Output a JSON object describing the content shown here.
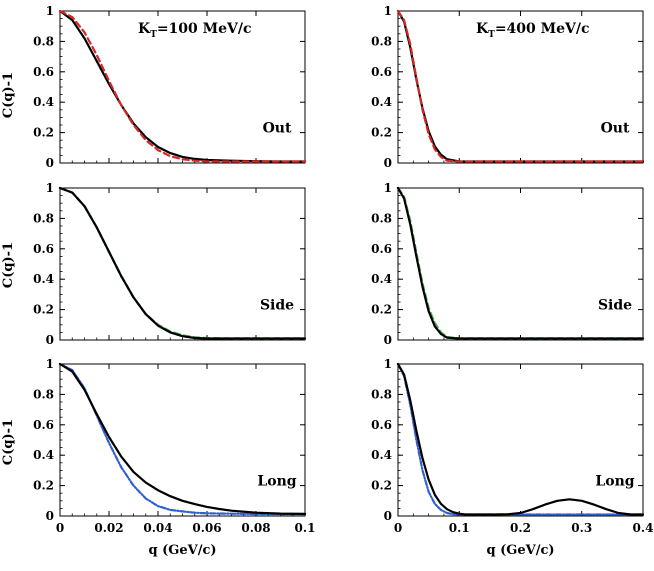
{
  "chart_data": [
    {
      "id": "p00",
      "type": "line",
      "title_main": "K",
      "title_sub": "T",
      "title_rest": "=100 MeV/c",
      "panel_label": "Out",
      "ylabel": "C(q)-1",
      "xlabel": "",
      "xlim": [
        0,
        0.1
      ],
      "ylim": [
        0,
        1
      ],
      "xticks": [
        0,
        0.02,
        0.04,
        0.06,
        0.08,
        0.1
      ],
      "xtick_labels": [
        "",
        "",
        "",
        "",
        "",
        ""
      ],
      "yticks": [
        0,
        0.2,
        0.4,
        0.6,
        0.8,
        1
      ],
      "ytick_labels": [
        "0",
        "0.2",
        "0.4",
        "0.6",
        "0.8",
        "1"
      ],
      "series": [
        {
          "name": "model",
          "color": "#000000",
          "dash": "",
          "width": 2.2,
          "x": [
            0,
            0.005,
            0.01,
            0.015,
            0.02,
            0.025,
            0.03,
            0.035,
            0.04,
            0.045,
            0.05,
            0.055,
            0.06,
            0.07,
            0.08,
            0.09,
            0.1
          ],
          "y": [
            1.0,
            0.94,
            0.82,
            0.67,
            0.52,
            0.38,
            0.26,
            0.17,
            0.105,
            0.065,
            0.04,
            0.027,
            0.02,
            0.015,
            0.012,
            0.01,
            0.01
          ]
        },
        {
          "name": "fit",
          "color": "#d62728",
          "dash": "6,4",
          "width": 2.2,
          "x": [
            0,
            0.005,
            0.01,
            0.015,
            0.02,
            0.025,
            0.03,
            0.035,
            0.04,
            0.045,
            0.05,
            0.055,
            0.06,
            0.07,
            0.08,
            0.09,
            0.1
          ],
          "y": [
            1.0,
            0.96,
            0.86,
            0.71,
            0.54,
            0.38,
            0.25,
            0.15,
            0.085,
            0.045,
            0.025,
            0.015,
            0.01,
            0.01,
            0.01,
            0.01,
            0.01
          ]
        }
      ]
    },
    {
      "id": "p01",
      "type": "line",
      "title_main": "K",
      "title_sub": "T",
      "title_rest": "=400 MeV/c",
      "panel_label": "Out",
      "ylabel": "",
      "xlabel": "",
      "xlim": [
        0,
        0.4
      ],
      "ylim": [
        0,
        1
      ],
      "xticks": [
        0,
        0.1,
        0.2,
        0.3,
        0.4
      ],
      "xtick_labels": [
        "",
        "",
        "",
        "",
        ""
      ],
      "yticks": [
        0,
        0.2,
        0.4,
        0.6,
        0.8,
        1
      ],
      "ytick_labels": [
        "0",
        "0.2",
        "0.4",
        "0.6",
        "0.8",
        "1"
      ],
      "series": [
        {
          "name": "model",
          "color": "#000000",
          "dash": "",
          "width": 2.2,
          "x": [
            0,
            0.01,
            0.02,
            0.03,
            0.04,
            0.05,
            0.06,
            0.07,
            0.08,
            0.1,
            0.12,
            0.15,
            0.2,
            0.3,
            0.4
          ],
          "y": [
            1.0,
            0.93,
            0.76,
            0.55,
            0.36,
            0.21,
            0.11,
            0.055,
            0.025,
            0.01,
            0.01,
            0.01,
            0.01,
            0.01,
            0.01
          ]
        },
        {
          "name": "fit",
          "color": "#d62728",
          "dash": "6,4",
          "width": 2.2,
          "x": [
            0,
            0.01,
            0.02,
            0.03,
            0.04,
            0.05,
            0.06,
            0.07,
            0.08,
            0.1,
            0.12,
            0.15,
            0.2,
            0.3,
            0.4
          ],
          "y": [
            1.0,
            0.94,
            0.78,
            0.56,
            0.35,
            0.19,
            0.09,
            0.04,
            0.015,
            0.01,
            0.01,
            0.01,
            0.01,
            0.01,
            0.01
          ]
        }
      ]
    },
    {
      "id": "p10",
      "type": "line",
      "panel_label": "Side",
      "ylabel": "C(q)-1",
      "xlabel": "",
      "xlim": [
        0,
        0.1
      ],
      "ylim": [
        0,
        1
      ],
      "xticks": [
        0,
        0.02,
        0.04,
        0.06,
        0.08,
        0.1
      ],
      "xtick_labels": [
        "",
        "",
        "",
        "",
        "",
        ""
      ],
      "yticks": [
        0,
        0.2,
        0.4,
        0.6,
        0.8,
        1
      ],
      "ytick_labels": [
        "0",
        "0.2",
        "0.4",
        "0.6",
        "0.8",
        "1"
      ],
      "series": [
        {
          "name": "fit",
          "color": "#4caf50",
          "dash": "6,4",
          "width": 2.4,
          "x": [
            0,
            0.005,
            0.01,
            0.015,
            0.02,
            0.025,
            0.03,
            0.035,
            0.04,
            0.045,
            0.05,
            0.055,
            0.06,
            0.07,
            0.08,
            0.1
          ],
          "y": [
            1.0,
            0.97,
            0.88,
            0.74,
            0.58,
            0.42,
            0.28,
            0.17,
            0.1,
            0.055,
            0.03,
            0.018,
            0.012,
            0.01,
            0.01,
            0.01
          ]
        },
        {
          "name": "model",
          "color": "#000000",
          "dash": "",
          "width": 2.2,
          "x": [
            0,
            0.005,
            0.01,
            0.015,
            0.02,
            0.025,
            0.03,
            0.035,
            0.04,
            0.045,
            0.05,
            0.055,
            0.06,
            0.07,
            0.08,
            0.1
          ],
          "y": [
            1.0,
            0.97,
            0.88,
            0.74,
            0.58,
            0.42,
            0.28,
            0.17,
            0.095,
            0.05,
            0.025,
            0.013,
            0.01,
            0.01,
            0.01,
            0.01
          ]
        }
      ]
    },
    {
      "id": "p11",
      "type": "line",
      "panel_label": "Side",
      "ylabel": "",
      "xlabel": "",
      "xlim": [
        0,
        0.4
      ],
      "ylim": [
        0,
        1
      ],
      "xticks": [
        0,
        0.1,
        0.2,
        0.3,
        0.4
      ],
      "xtick_labels": [
        "",
        "",
        "",
        "",
        ""
      ],
      "yticks": [
        0,
        0.2,
        0.4,
        0.6,
        0.8,
        1
      ],
      "ytick_labels": [
        "0",
        "0.2",
        "0.4",
        "0.6",
        "0.8",
        "1"
      ],
      "series": [
        {
          "name": "fit",
          "color": "#4caf50",
          "dash": "6,4",
          "width": 2.4,
          "x": [
            0,
            0.01,
            0.02,
            0.03,
            0.04,
            0.05,
            0.06,
            0.07,
            0.08,
            0.1,
            0.12,
            0.2,
            0.3,
            0.4
          ],
          "y": [
            1.0,
            0.94,
            0.78,
            0.57,
            0.37,
            0.21,
            0.11,
            0.05,
            0.02,
            0.01,
            0.01,
            0.01,
            0.01,
            0.01
          ]
        },
        {
          "name": "model",
          "color": "#000000",
          "dash": "",
          "width": 2.2,
          "x": [
            0,
            0.01,
            0.02,
            0.03,
            0.04,
            0.05,
            0.06,
            0.07,
            0.08,
            0.1,
            0.12,
            0.2,
            0.3,
            0.4
          ],
          "y": [
            1.0,
            0.93,
            0.76,
            0.55,
            0.35,
            0.19,
            0.09,
            0.04,
            0.015,
            0.01,
            0.01,
            0.01,
            0.01,
            0.01
          ]
        }
      ]
    },
    {
      "id": "p20",
      "type": "line",
      "panel_label": "Long",
      "ylabel": "C(q)-1",
      "xlabel": "q (GeV/c)",
      "xlim": [
        0,
        0.1
      ],
      "ylim": [
        0,
        1
      ],
      "xticks": [
        0,
        0.02,
        0.04,
        0.06,
        0.08,
        0.1
      ],
      "xtick_labels": [
        "0",
        "0.02",
        "0.04",
        "0.06",
        "0.08",
        "0.1"
      ],
      "yticks": [
        0,
        0.2,
        0.4,
        0.6,
        0.8,
        1
      ],
      "ytick_labels": [
        "0",
        "0.2",
        "0.4",
        "0.6",
        "0.8",
        "1"
      ],
      "series": [
        {
          "name": "fit",
          "color": "#2f5fd0",
          "dash": "5,2,1,2",
          "width": 2.2,
          "x": [
            0,
            0.005,
            0.01,
            0.015,
            0.02,
            0.025,
            0.03,
            0.035,
            0.04,
            0.045,
            0.05,
            0.055,
            0.06,
            0.07,
            0.08,
            0.1
          ],
          "y": [
            1.0,
            0.96,
            0.84,
            0.66,
            0.48,
            0.32,
            0.2,
            0.115,
            0.065,
            0.04,
            0.03,
            0.022,
            0.018,
            0.015,
            0.013,
            0.012
          ]
        },
        {
          "name": "model",
          "color": "#000000",
          "dash": "",
          "width": 2.2,
          "x": [
            0,
            0.005,
            0.01,
            0.015,
            0.02,
            0.025,
            0.03,
            0.035,
            0.04,
            0.045,
            0.05,
            0.055,
            0.06,
            0.065,
            0.07,
            0.08,
            0.09,
            0.1
          ],
          "y": [
            1.0,
            0.95,
            0.83,
            0.67,
            0.52,
            0.39,
            0.29,
            0.22,
            0.17,
            0.13,
            0.1,
            0.078,
            0.06,
            0.046,
            0.035,
            0.022,
            0.016,
            0.014
          ]
        }
      ]
    },
    {
      "id": "p21",
      "type": "line",
      "panel_label": "Long",
      "ylabel": "",
      "xlabel": "q (GeV/c)",
      "xlim": [
        0,
        0.4
      ],
      "ylim": [
        0,
        1
      ],
      "xticks": [
        0,
        0.1,
        0.2,
        0.3,
        0.4
      ],
      "xtick_labels": [
        "0",
        "0.1",
        "0.2",
        "0.3",
        "0.4"
      ],
      "yticks": [
        0,
        0.2,
        0.4,
        0.6,
        0.8,
        1
      ],
      "ytick_labels": [
        "0",
        "0.2",
        "0.4",
        "0.6",
        "0.8",
        "1"
      ],
      "series": [
        {
          "name": "fit",
          "color": "#2f5fd0",
          "dash": "5,2,1,2",
          "width": 2.2,
          "x": [
            0,
            0.01,
            0.02,
            0.03,
            0.04,
            0.05,
            0.06,
            0.07,
            0.08,
            0.09,
            0.1,
            0.12,
            0.2,
            0.3,
            0.4
          ],
          "y": [
            1.0,
            0.92,
            0.73,
            0.5,
            0.3,
            0.16,
            0.08,
            0.04,
            0.02,
            0.012,
            0.01,
            0.01,
            0.01,
            0.01,
            0.01
          ]
        },
        {
          "name": "model",
          "color": "#000000",
          "dash": "",
          "width": 2.2,
          "x": [
            0,
            0.01,
            0.02,
            0.03,
            0.04,
            0.05,
            0.06,
            0.07,
            0.08,
            0.09,
            0.1,
            0.11,
            0.12,
            0.14,
            0.16,
            0.18,
            0.2,
            0.22,
            0.24,
            0.26,
            0.28,
            0.3,
            0.32,
            0.34,
            0.36,
            0.38,
            0.4
          ],
          "y": [
            1.0,
            0.93,
            0.76,
            0.56,
            0.38,
            0.24,
            0.14,
            0.08,
            0.045,
            0.025,
            0.015,
            0.01,
            0.01,
            0.01,
            0.01,
            0.012,
            0.02,
            0.045,
            0.075,
            0.1,
            0.11,
            0.1,
            0.075,
            0.045,
            0.02,
            0.01,
            0.01
          ]
        }
      ]
    }
  ]
}
